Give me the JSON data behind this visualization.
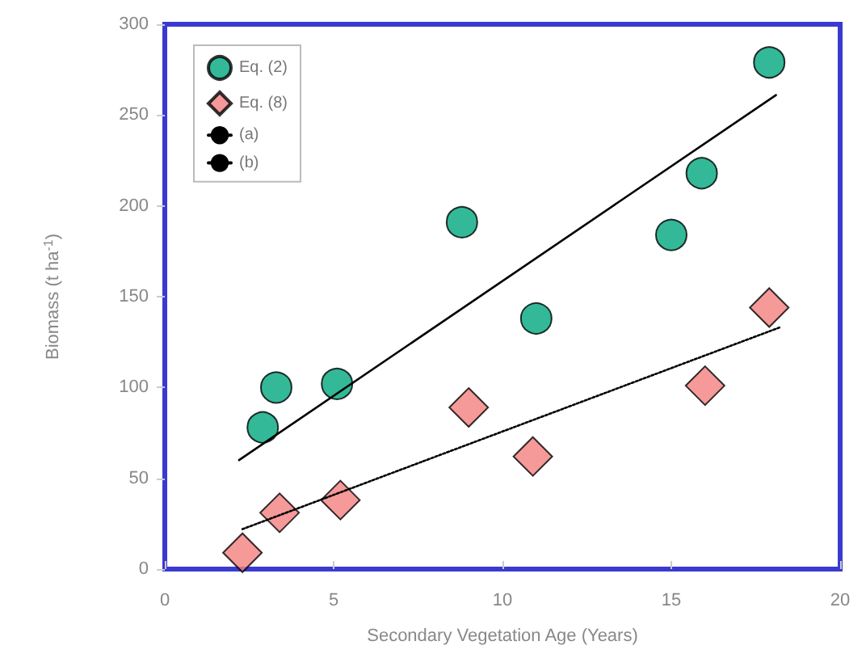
{
  "chart_data": {
    "type": "scatter",
    "xlabel": "Secondary Vegetation Age (Years)",
    "ylabel": "Biomass (t ha$^{-1}$)",
    "xlim": [
      0,
      20
    ],
    "xticks": [
      0,
      5,
      10,
      15,
      20
    ],
    "ylim": [
      0,
      300
    ],
    "yticks": [
      0,
      50,
      100,
      150,
      200,
      250,
      300
    ],
    "grid": false,
    "legend": "top left",
    "series": [
      {
        "name": "Eq. (2)",
        "marker": "circle",
        "color": "#00a87e",
        "x": [
          2.9,
          3.3,
          5.1,
          8.8,
          11.0,
          15.0,
          15.9,
          17.9
        ],
        "values": [
          78,
          100,
          102,
          191,
          138,
          184,
          218,
          279
        ]
      },
      {
        "name": "Eq. (8)",
        "marker": "diamond",
        "color": "#f47f7f",
        "x": [
          2.3,
          3.4,
          5.2,
          9.0,
          10.9,
          16.0,
          17.9
        ],
        "values": [
          9,
          31,
          38,
          89,
          62,
          101,
          144
        ]
      },
      {
        "name": "(a)",
        "type": "line",
        "marker": "none",
        "line_style": "solid",
        "color": "#000000",
        "x": [
          2.2,
          18.1
        ],
        "values": [
          60,
          261
        ]
      },
      {
        "name": "(b)",
        "type": "line",
        "marker": "none",
        "line_style": "dotted",
        "color": "#000000",
        "x": [
          2.3,
          18.2
        ],
        "values": [
          22,
          133
        ]
      }
    ]
  }
}
